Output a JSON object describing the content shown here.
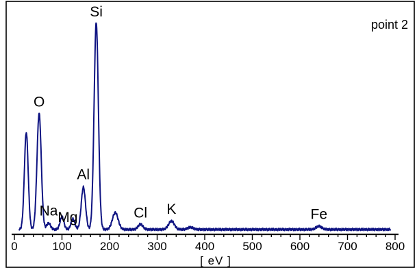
{
  "chart_data": {
    "type": "line",
    "title": "point 2",
    "xlabel": "[ eV ]",
    "ylabel": "",
    "xlim": [
      0,
      800
    ],
    "ylim": [
      0,
      100
    ],
    "xticks": [
      0,
      100,
      200,
      300,
      400,
      500,
      600,
      700,
      800
    ],
    "grid": false,
    "series_color": "#0f1482",
    "baseline": 2,
    "peaks": [
      {
        "center": 25,
        "height": 46,
        "width": 4
      },
      {
        "center": 52,
        "height": 55,
        "width": 4.5
      },
      {
        "center": 72,
        "height": 3,
        "width": 4
      },
      {
        "center": 100,
        "height": 6,
        "width": 4
      },
      {
        "center": 123,
        "height": 5,
        "width": 4
      },
      {
        "center": 145,
        "height": 20,
        "width": 4.5
      },
      {
        "center": 172,
        "height": 98,
        "width": 4.5
      },
      {
        "center": 212,
        "height": 8,
        "width": 6
      },
      {
        "center": 265,
        "height": 2.5,
        "width": 5
      },
      {
        "center": 330,
        "height": 4,
        "width": 6
      },
      {
        "center": 370,
        "height": 1,
        "width": 6
      },
      {
        "center": 640,
        "height": 1.5,
        "width": 6
      }
    ],
    "annotations": [
      {
        "text": "O",
        "x": 52,
        "y": 55
      },
      {
        "text": "Na",
        "x": 72,
        "y": 3
      },
      {
        "text": "Mg",
        "x": 112,
        "y": 6
      },
      {
        "text": "Al",
        "x": 145,
        "y": 20
      },
      {
        "text": "Si",
        "x": 172,
        "y": 98
      },
      {
        "text": "Cl",
        "x": 265,
        "y": 2.5
      },
      {
        "text": "K",
        "x": 330,
        "y": 4
      },
      {
        "text": "Fe",
        "x": 640,
        "y": 1.5
      }
    ]
  }
}
